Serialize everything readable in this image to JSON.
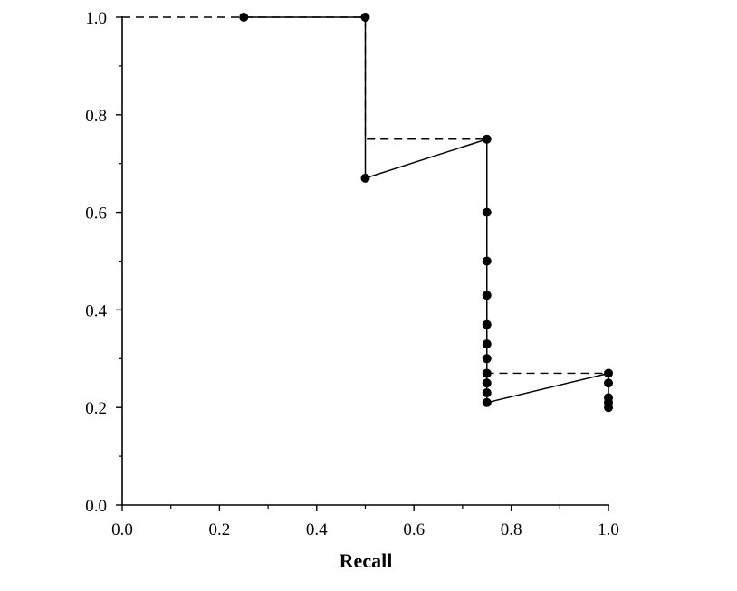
{
  "chart_data": {
    "type": "line",
    "title": "",
    "xlabel": "Recall",
    "ylabel": "",
    "xlim": [
      0.0,
      1.0
    ],
    "ylim": [
      0.0,
      1.0
    ],
    "grid": false,
    "x_ticks": [
      0.0,
      0.2,
      0.4,
      0.6,
      0.8,
      1.0
    ],
    "y_ticks": [
      0.0,
      0.2,
      0.4,
      0.6,
      0.8,
      1.0
    ],
    "x_tick_labels": [
      "0.0",
      "0.2",
      "0.4",
      "0.6",
      "0.8",
      "1.0"
    ],
    "y_tick_labels": [
      "0.0",
      "0.2",
      "0.4",
      "0.6",
      "0.8",
      "1.0"
    ],
    "series": [
      {
        "style": "solid-with-markers",
        "x": [
          0.25,
          0.5,
          0.5,
          0.75,
          0.75,
          0.75,
          0.75,
          0.75,
          0.75,
          0.75,
          0.75,
          0.75,
          0.75,
          0.75,
          1.0,
          1.0,
          1.0,
          1.0,
          1.0
        ],
        "y": [
          1.0,
          1.0,
          0.67,
          0.75,
          0.6,
          0.5,
          0.43,
          0.37,
          0.33,
          0.3,
          0.27,
          0.25,
          0.23,
          0.21,
          0.27,
          0.25,
          0.22,
          0.21,
          0.2
        ]
      },
      {
        "style": "dashed",
        "x": [
          0.0,
          0.5,
          0.5,
          0.75,
          0.75,
          1.0
        ],
        "y": [
          1.0,
          1.0,
          0.75,
          0.75,
          0.27,
          0.27
        ]
      }
    ]
  }
}
